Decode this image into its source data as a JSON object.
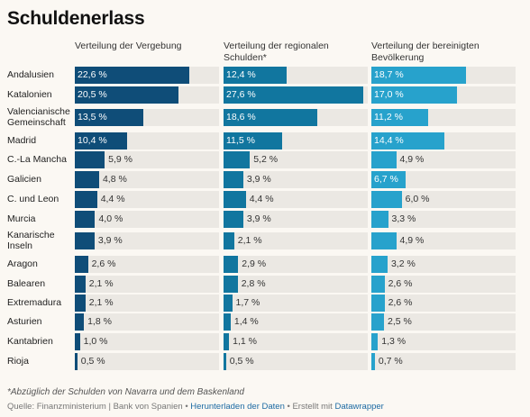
{
  "title": "Schuldenerlass",
  "chart_data": {
    "type": "bar",
    "orientation": "horizontal",
    "categories": [
      "Andalusien",
      "Katalonien",
      "Valencianische Gemeinschaft",
      "Madrid",
      "C.-La Mancha",
      "Galicien",
      "C. und Leon",
      "Murcia",
      "Kanarische Inseln",
      "Aragon",
      "Balearen",
      "Extremadura",
      "Asturien",
      "Kantabrien",
      "Rioja"
    ],
    "series": [
      {
        "name": "Verteilung der Vergebung",
        "color": "#0f4d78",
        "values": [
          22.6,
          20.5,
          13.5,
          10.4,
          5.9,
          4.8,
          4.4,
          4.0,
          3.9,
          2.6,
          2.1,
          2.1,
          1.8,
          1.0,
          0.5
        ],
        "labels": [
          "22,6 %",
          "20,5 %",
          "13,5 %",
          "10,4 %",
          "5,9 %",
          "4,8 %",
          "4,4 %",
          "4,0 %",
          "3,9 %",
          "2,6 %",
          "2,1 %",
          "2,1 %",
          "1,8 %",
          "1,0 %",
          "0,5 %"
        ]
      },
      {
        "name": "Verteilung der regionalen Schulden*",
        "color": "#11769f",
        "values": [
          12.4,
          27.6,
          18.6,
          11.5,
          5.2,
          3.9,
          4.4,
          3.9,
          2.1,
          2.9,
          2.8,
          1.7,
          1.4,
          1.1,
          0.5
        ],
        "labels": [
          "12,4 %",
          "27,6 %",
          "18,6 %",
          "11,5 %",
          "5,2 %",
          "3,9 %",
          "4,4 %",
          "3,9 %",
          "2,1 %",
          "2,9 %",
          "2,8 %",
          "1,7 %",
          "1,4 %",
          "1,1 %",
          "0,5 %"
        ]
      },
      {
        "name": "Verteilung der bereinigten Bevölkerung",
        "color": "#27a2cc",
        "values": [
          18.7,
          17.0,
          11.2,
          14.4,
          4.9,
          6.7,
          6.0,
          3.3,
          4.9,
          3.2,
          2.6,
          2.6,
          2.5,
          1.3,
          0.7
        ],
        "labels": [
          "18,7 %",
          "17,0 %",
          "11,2 %",
          "14,4 %",
          "4,9 %",
          "6,7 %",
          "6,0 %",
          "3,3 %",
          "4,9 %",
          "3,2 %",
          "2,6 %",
          "2,6 %",
          "2,5 %",
          "1,3 %",
          "0,7 %"
        ]
      }
    ],
    "xlim": [
      0,
      28.5
    ]
  },
  "footnote": "*Abzüglich der Schulden von Navarra und dem Baskenland",
  "source": {
    "prefix": "Quelle: Finanzministerium | Bank von Spanien • ",
    "download_link": "Herunterladen der Daten",
    "middle": " • Erstellt mit ",
    "tool_link": "Datawrapper"
  }
}
